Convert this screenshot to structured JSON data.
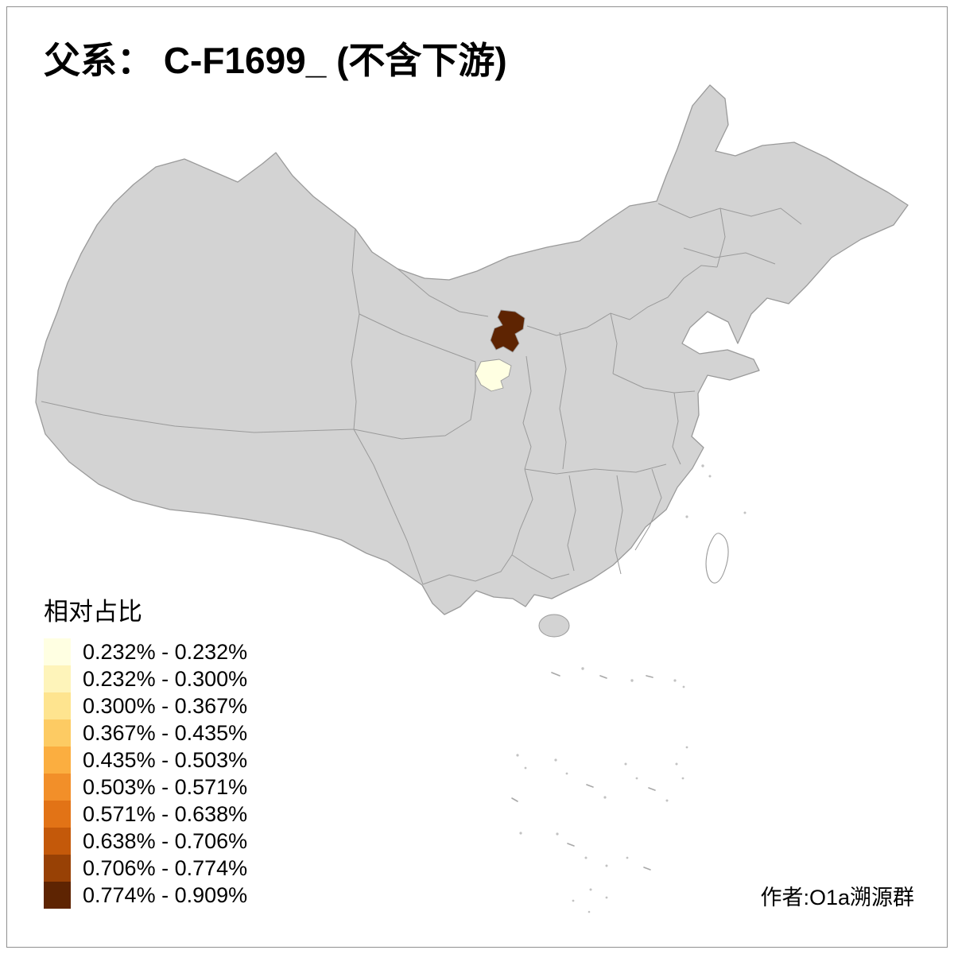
{
  "title": "父系： C-F1699_ (不含下游)",
  "legend": {
    "title": "相对占比",
    "items": [
      {
        "label": "0.232% - 0.232%",
        "color": "#FFFFE2"
      },
      {
        "label": "0.232% - 0.300%",
        "color": "#FEF4BA"
      },
      {
        "label": "0.300% - 0.367%",
        "color": "#FEE48F"
      },
      {
        "label": "0.367% - 0.435%",
        "color": "#FDCB63"
      },
      {
        "label": "0.435% - 0.503%",
        "color": "#FBAE40"
      },
      {
        "label": "0.503% - 0.571%",
        "color": "#F28F29"
      },
      {
        "label": "0.571% - 0.638%",
        "color": "#E27316"
      },
      {
        "label": "0.638% - 0.706%",
        "color": "#C4590A"
      },
      {
        "label": "0.706% - 0.774%",
        "color": "#984105"
      },
      {
        "label": "0.774% - 0.909%",
        "color": "#5E2402"
      }
    ]
  },
  "attribution": "作者:O1a溯源群",
  "map": {
    "base_fill": "#D3D3D3",
    "boundary_color": "#9A9A9A",
    "regions": [
      {
        "name": "region-highest",
        "value_range": "0.774% - 0.909%",
        "color": "#5E2402"
      },
      {
        "name": "region-lowest",
        "value_range": "0.232% - 0.232%",
        "color": "#FFFFE2"
      }
    ]
  }
}
